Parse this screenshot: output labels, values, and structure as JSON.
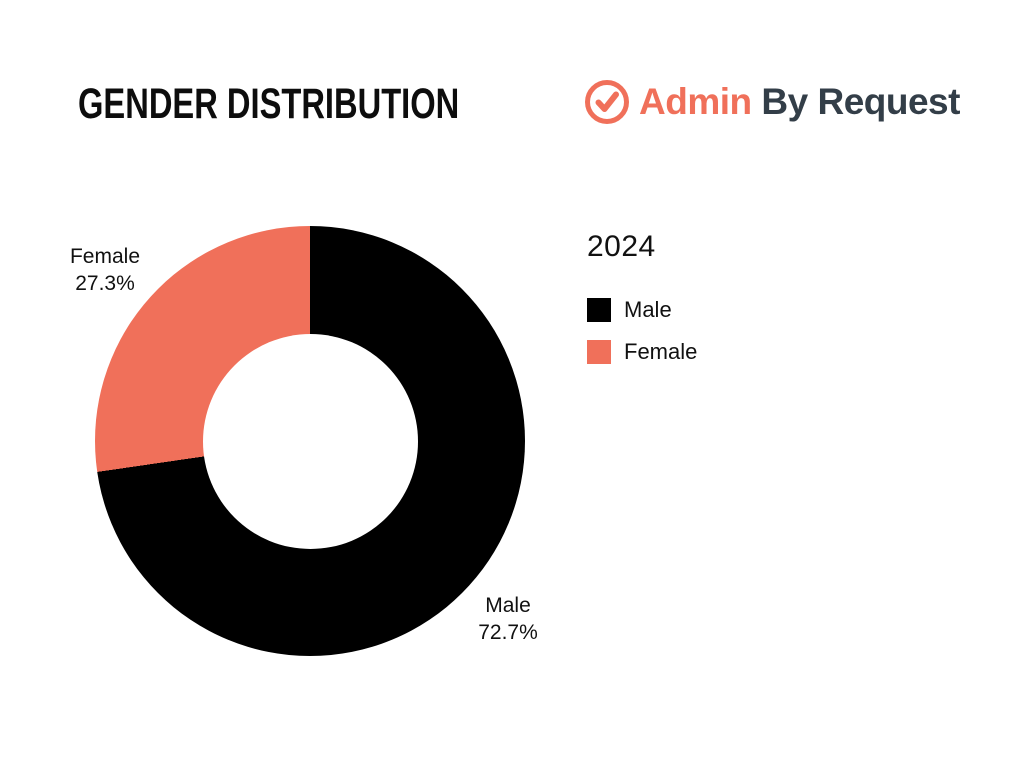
{
  "page_title": "GENDER DISTRIBUTION",
  "header": {
    "title": "GENDER DISTRIBUTION",
    "logo": {
      "icon": "check-circle-icon",
      "word_primary": "Admin",
      "word_secondary": "By Request",
      "color_primary": "#F0705A",
      "color_secondary": "#333E48"
    }
  },
  "legend": {
    "year": "2024",
    "position": "right"
  },
  "chart_data": {
    "type": "pie",
    "donut": true,
    "title": "GENDER DISTRIBUTION",
    "subtitle": "2024",
    "categories": [
      "Male",
      "Female"
    ],
    "values": [
      72.7,
      27.3
    ],
    "start_angle_deg": 0,
    "direction": "clockwise",
    "inner_radius_ratio": 0.5,
    "legend_position": "right",
    "slices": [
      {
        "name": "Male",
        "value": 72.7,
        "pct_label": "72.7%",
        "color": "#000000"
      },
      {
        "name": "Female",
        "value": 27.3,
        "pct_label": "27.3%",
        "color": "#F0705A"
      }
    ]
  }
}
